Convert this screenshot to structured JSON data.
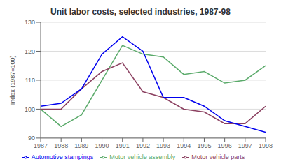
{
  "chart_data": {
    "type": "line",
    "title": "Unit labor costs, selected industries, 1987-98",
    "ylabel": "Index (1987=100)",
    "x": [
      1987,
      1988,
      1989,
      1990,
      1991,
      1992,
      1993,
      1994,
      1995,
      1996,
      1997,
      1998
    ],
    "xlim": [
      1987,
      1998
    ],
    "xticks": [
      1987,
      1988,
      1989,
      1990,
      1991,
      1992,
      1993,
      1994,
      1995,
      1996,
      1997,
      1998
    ],
    "ylim": [
      90,
      130
    ],
    "yticks": [
      90,
      100,
      110,
      120,
      130
    ],
    "grid": true,
    "legend": "bottom",
    "series": [
      {
        "name": "Motor vehicle assembly",
        "color": "#5aaa6a",
        "values": [
          100,
          94,
          98,
          110,
          122,
          119,
          118,
          112,
          113,
          109,
          110,
          115
        ]
      },
      {
        "name": "Motor vehicle parts",
        "color": "#8b4060",
        "values": [
          100,
          100,
          107,
          113,
          116,
          106,
          104,
          100,
          99,
          95,
          95,
          101
        ]
      },
      {
        "name": "Automotive stampings",
        "color": "#0000ee",
        "values": [
          101,
          102,
          107,
          119,
          125,
          120,
          104,
          104,
          101,
          96,
          94,
          92
        ]
      }
    ]
  }
}
